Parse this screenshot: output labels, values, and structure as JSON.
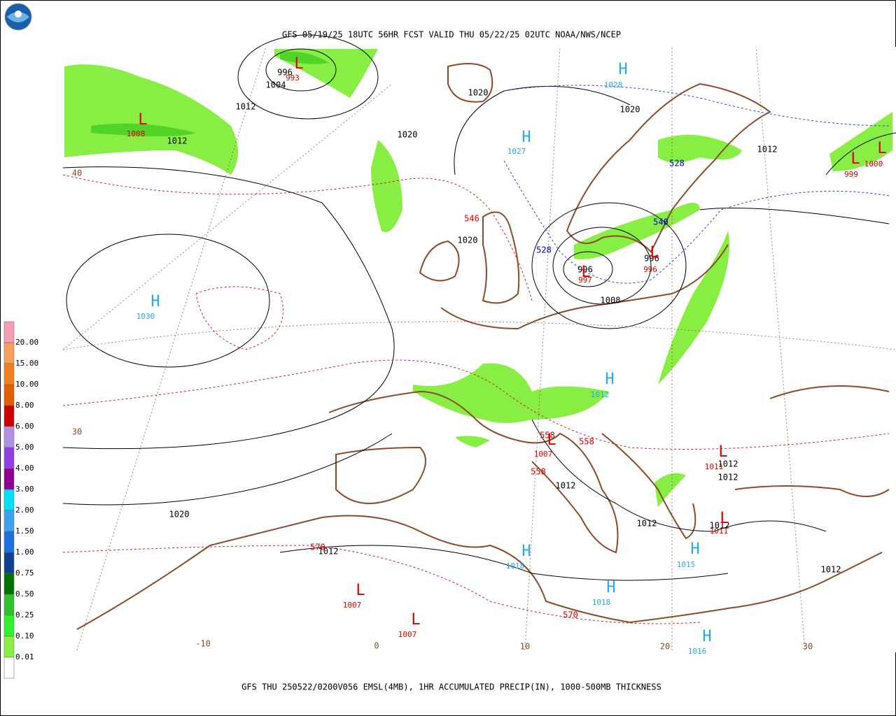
{
  "header": {
    "title": "GFS 05/19/25 18UTC 56HR FCST VALID THU 05/22/25 02UTC NOAA/NWS/NCEP"
  },
  "footer": {
    "caption": "GFS THU 250522/0200V056 EMSL(4MB), 1HR ACCUMULATED PRECIP(IN), 1000-500MB THICKNESS"
  },
  "legend": {
    "labels": [
      "20.00",
      "15.00",
      "10.00",
      "8.00",
      "6.00",
      "5.00",
      "4.00",
      "3.00",
      "2.00",
      "1.50",
      "1.00",
      "0.75",
      "0.50",
      "0.25",
      "0.10",
      "0.01"
    ]
  },
  "map": {
    "isobar_labels": [
      "996",
      "1004",
      "1012",
      "1012",
      "1020",
      "1020",
      "1020",
      "1012",
      "1020",
      "996",
      "1008",
      "996",
      "1020",
      "1012",
      "1012",
      "1012",
      "1012",
      "1012",
      "1012",
      "1012"
    ],
    "centers": [
      {
        "symbol": "L",
        "value": "993"
      },
      {
        "symbol": "L",
        "value": "1008"
      },
      {
        "symbol": "H",
        "value": "1028"
      },
      {
        "symbol": "H",
        "value": "1027"
      },
      {
        "symbol": "H",
        "value": "1030"
      },
      {
        "symbol": "L",
        "value": "999"
      },
      {
        "symbol": "L",
        "value": "1000"
      },
      {
        "symbol": "L",
        "value": "996"
      },
      {
        "symbol": "L",
        "value": "997"
      },
      {
        "symbol": "H",
        "value": "1012"
      },
      {
        "symbol": "L",
        "value": "1007"
      },
      {
        "symbol": "L",
        "value": "1011"
      },
      {
        "symbol": "L",
        "value": "1011"
      },
      {
        "symbol": "H",
        "value": "1015"
      },
      {
        "symbol": "H",
        "value": "1018"
      },
      {
        "symbol": "H",
        "value": "1018"
      },
      {
        "symbol": "L",
        "value": "1007"
      },
      {
        "symbol": "L",
        "value": "1007"
      },
      {
        "symbol": "H",
        "value": "1016"
      }
    ],
    "thickness_labels": [
      "546",
      "528",
      "528",
      "540",
      "558",
      "558",
      "558",
      "570",
      "570"
    ],
    "grid_labels": [
      "40",
      "30",
      "-10",
      "0",
      "10",
      "20",
      "30"
    ]
  }
}
